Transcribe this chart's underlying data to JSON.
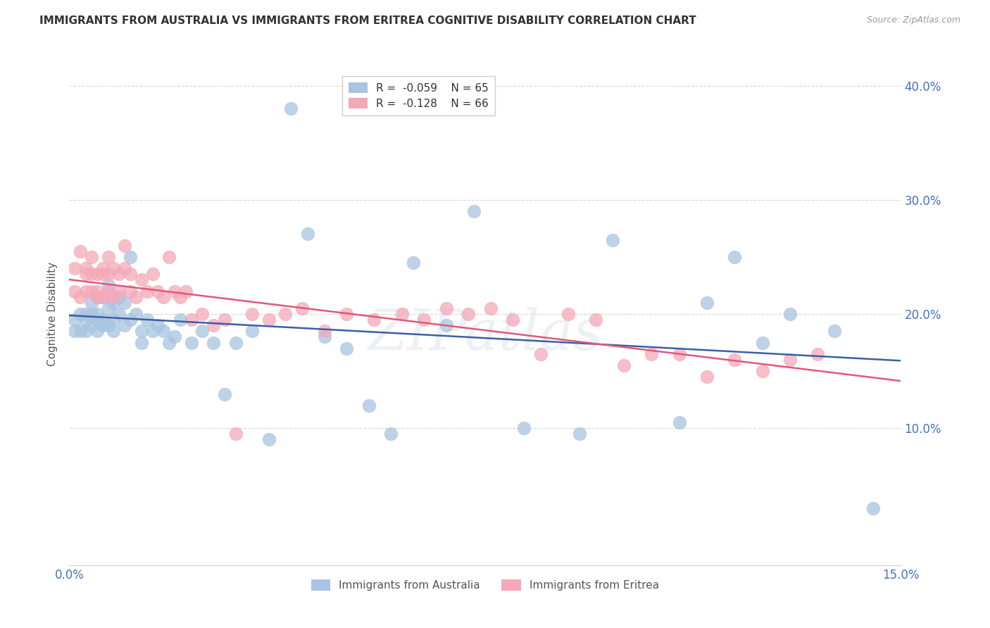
{
  "title": "IMMIGRANTS FROM AUSTRALIA VS IMMIGRANTS FROM ERITREA COGNITIVE DISABILITY CORRELATION CHART",
  "source": "Source: ZipAtlas.com",
  "ylabel": "Cognitive Disability",
  "xlim": [
    0.0,
    0.15
  ],
  "ylim": [
    -0.02,
    0.42
  ],
  "xticks": [
    0.0,
    0.025,
    0.05,
    0.075,
    0.1,
    0.125,
    0.15
  ],
  "yticks": [
    0.1,
    0.2,
    0.3,
    0.4
  ],
  "ytick_labels": [
    "10.0%",
    "20.0%",
    "30.0%",
    "40.0%"
  ],
  "xtick_labels": [
    "0.0%",
    "",
    "",
    "",
    "",
    "",
    "15.0%"
  ],
  "color_australia": "#a8c4e0",
  "color_eritrea": "#f4a8b8",
  "line_color_australia": "#3a5fa8",
  "line_color_eritrea": "#e05878",
  "legend_R_australia": "R =  -0.059",
  "legend_N_australia": "N = 65",
  "legend_R_eritrea": "R =  -0.128",
  "legend_N_eritrea": "N = 66",
  "australia_x": [
    0.001,
    0.001,
    0.002,
    0.002,
    0.003,
    0.003,
    0.003,
    0.004,
    0.004,
    0.004,
    0.005,
    0.005,
    0.005,
    0.005,
    0.006,
    0.006,
    0.006,
    0.007,
    0.007,
    0.007,
    0.008,
    0.008,
    0.008,
    0.009,
    0.009,
    0.01,
    0.01,
    0.011,
    0.011,
    0.012,
    0.013,
    0.013,
    0.014,
    0.015,
    0.016,
    0.017,
    0.018,
    0.019,
    0.02,
    0.022,
    0.024,
    0.026,
    0.028,
    0.03,
    0.033,
    0.036,
    0.04,
    0.043,
    0.046,
    0.05,
    0.054,
    0.058,
    0.062,
    0.068,
    0.073,
    0.082,
    0.092,
    0.098,
    0.11,
    0.115,
    0.12,
    0.125,
    0.13,
    0.138,
    0.145
  ],
  "australia_y": [
    0.195,
    0.185,
    0.2,
    0.185,
    0.2,
    0.185,
    0.195,
    0.21,
    0.19,
    0.2,
    0.215,
    0.195,
    0.185,
    0.2,
    0.215,
    0.195,
    0.19,
    0.225,
    0.205,
    0.19,
    0.21,
    0.195,
    0.185,
    0.2,
    0.215,
    0.21,
    0.19,
    0.25,
    0.195,
    0.2,
    0.185,
    0.175,
    0.195,
    0.185,
    0.19,
    0.185,
    0.175,
    0.18,
    0.195,
    0.175,
    0.185,
    0.175,
    0.13,
    0.175,
    0.185,
    0.09,
    0.38,
    0.27,
    0.18,
    0.17,
    0.12,
    0.095,
    0.245,
    0.19,
    0.29,
    0.1,
    0.095,
    0.265,
    0.105,
    0.21,
    0.25,
    0.175,
    0.2,
    0.185,
    0.03
  ],
  "eritrea_x": [
    0.001,
    0.001,
    0.002,
    0.002,
    0.003,
    0.003,
    0.003,
    0.004,
    0.004,
    0.004,
    0.005,
    0.005,
    0.005,
    0.006,
    0.006,
    0.006,
    0.007,
    0.007,
    0.007,
    0.008,
    0.008,
    0.009,
    0.009,
    0.01,
    0.01,
    0.011,
    0.011,
    0.012,
    0.013,
    0.014,
    0.015,
    0.016,
    0.017,
    0.018,
    0.019,
    0.02,
    0.021,
    0.022,
    0.024,
    0.026,
    0.028,
    0.03,
    0.033,
    0.036,
    0.039,
    0.042,
    0.046,
    0.05,
    0.055,
    0.06,
    0.064,
    0.068,
    0.072,
    0.076,
    0.08,
    0.085,
    0.09,
    0.095,
    0.1,
    0.105,
    0.11,
    0.115,
    0.12,
    0.125,
    0.13,
    0.135
  ],
  "eritrea_y": [
    0.24,
    0.22,
    0.255,
    0.215,
    0.235,
    0.22,
    0.24,
    0.22,
    0.235,
    0.25,
    0.215,
    0.235,
    0.22,
    0.24,
    0.215,
    0.235,
    0.25,
    0.22,
    0.235,
    0.24,
    0.215,
    0.235,
    0.22,
    0.24,
    0.26,
    0.235,
    0.22,
    0.215,
    0.23,
    0.22,
    0.235,
    0.22,
    0.215,
    0.25,
    0.22,
    0.215,
    0.22,
    0.195,
    0.2,
    0.19,
    0.195,
    0.095,
    0.2,
    0.195,
    0.2,
    0.205,
    0.185,
    0.2,
    0.195,
    0.2,
    0.195,
    0.205,
    0.2,
    0.205,
    0.195,
    0.165,
    0.2,
    0.195,
    0.155,
    0.165,
    0.165,
    0.145,
    0.16,
    0.15,
    0.16,
    0.165
  ]
}
